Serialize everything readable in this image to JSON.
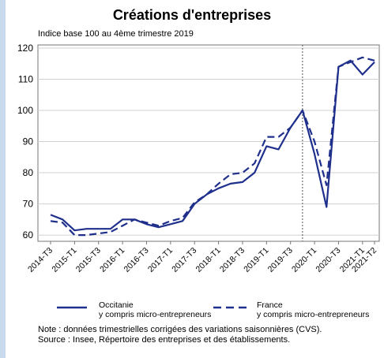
{
  "chart_data": {
    "type": "line",
    "title": "Créations d'entreprises",
    "ylabel": "Indice base 100 au 4ème trimestre 2019",
    "ylim": [
      58,
      121
    ],
    "yticks": [
      60,
      70,
      80,
      90,
      100,
      110,
      120
    ],
    "xticks": [
      "2014-T3",
      "2015-T1",
      "2015-T3",
      "2016-T1",
      "2016-T3",
      "2017-T1",
      "2017-T3",
      "2018-T1",
      "2018-T3",
      "2019-T1",
      "2019-T3",
      "2020-T1",
      "2020-T3",
      "2021-T1",
      "2021-T2"
    ],
    "categories": [
      "2014-T3",
      "2014-T4",
      "2015-T1",
      "2015-T2",
      "2015-T3",
      "2015-T4",
      "2016-T1",
      "2016-T2",
      "2016-T3",
      "2016-T4",
      "2017-T1",
      "2017-T2",
      "2017-T3",
      "2017-T4",
      "2018-T1",
      "2018-T2",
      "2018-T3",
      "2018-T4",
      "2019-T1",
      "2019-T2",
      "2019-T3",
      "2019-T4",
      "2020-T1",
      "2020-T2",
      "2020-T3",
      "2020-T4",
      "2021-T1",
      "2021-T2"
    ],
    "reference_line": "2019-T4",
    "series": [
      {
        "name": "Occitanie\ny compris micro-entrepreneurs",
        "color": "#1f2f8c",
        "style": "solid",
        "values": [
          66.5,
          65,
          61.5,
          62,
          62,
          62,
          65,
          65,
          63.5,
          62.5,
          63.5,
          64.5,
          70,
          73,
          75,
          76.5,
          77,
          80,
          88.5,
          87.5,
          94.5,
          100,
          86,
          69,
          114,
          116,
          111.5,
          115.5
        ]
      },
      {
        "name": "France\ny compris micro-entrepreneurs",
        "color": "#1f2f8c",
        "style": "dashed",
        "values": [
          64.5,
          64,
          60,
          60,
          60.5,
          61,
          63,
          65,
          64,
          63,
          64.5,
          65.5,
          70.5,
          73,
          76.5,
          79.5,
          80,
          83,
          91.5,
          91.5,
          94.5,
          100,
          90,
          76,
          114,
          115.5,
          117,
          116
        ]
      }
    ]
  },
  "note": "Note : données trimestrielles corrigées des variations saisonnières (CVS).",
  "source": "Source : Insee, Répertoire des entreprises et des établissements."
}
